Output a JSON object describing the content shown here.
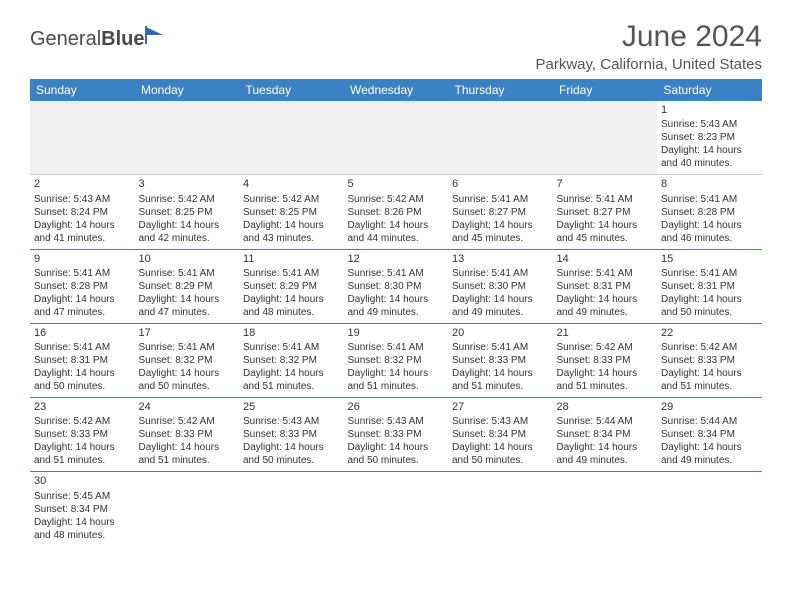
{
  "logo": {
    "text1": "General",
    "text2": "Blue",
    "icon_color": "#2b6cb0"
  },
  "title": "June 2024",
  "location": "Parkway, California, United States",
  "colors": {
    "header_bg": "#3b82c4",
    "header_fg": "#ffffff",
    "border": "#3b82c4",
    "empty_bg": "#f0f0f0",
    "text": "#333333"
  },
  "days_of_week": [
    "Sunday",
    "Monday",
    "Tuesday",
    "Wednesday",
    "Thursday",
    "Friday",
    "Saturday"
  ],
  "weeks": [
    [
      null,
      null,
      null,
      null,
      null,
      null,
      {
        "n": "1",
        "sr": "5:43 AM",
        "ss": "8:23 PM",
        "dl": "14 hours and 40 minutes."
      }
    ],
    [
      {
        "n": "2",
        "sr": "5:43 AM",
        "ss": "8:24 PM",
        "dl": "14 hours and 41 minutes."
      },
      {
        "n": "3",
        "sr": "5:42 AM",
        "ss": "8:25 PM",
        "dl": "14 hours and 42 minutes."
      },
      {
        "n": "4",
        "sr": "5:42 AM",
        "ss": "8:25 PM",
        "dl": "14 hours and 43 minutes."
      },
      {
        "n": "5",
        "sr": "5:42 AM",
        "ss": "8:26 PM",
        "dl": "14 hours and 44 minutes."
      },
      {
        "n": "6",
        "sr": "5:41 AM",
        "ss": "8:27 PM",
        "dl": "14 hours and 45 minutes."
      },
      {
        "n": "7",
        "sr": "5:41 AM",
        "ss": "8:27 PM",
        "dl": "14 hours and 45 minutes."
      },
      {
        "n": "8",
        "sr": "5:41 AM",
        "ss": "8:28 PM",
        "dl": "14 hours and 46 minutes."
      }
    ],
    [
      {
        "n": "9",
        "sr": "5:41 AM",
        "ss": "8:28 PM",
        "dl": "14 hours and 47 minutes."
      },
      {
        "n": "10",
        "sr": "5:41 AM",
        "ss": "8:29 PM",
        "dl": "14 hours and 47 minutes."
      },
      {
        "n": "11",
        "sr": "5:41 AM",
        "ss": "8:29 PM",
        "dl": "14 hours and 48 minutes."
      },
      {
        "n": "12",
        "sr": "5:41 AM",
        "ss": "8:30 PM",
        "dl": "14 hours and 49 minutes."
      },
      {
        "n": "13",
        "sr": "5:41 AM",
        "ss": "8:30 PM",
        "dl": "14 hours and 49 minutes."
      },
      {
        "n": "14",
        "sr": "5:41 AM",
        "ss": "8:31 PM",
        "dl": "14 hours and 49 minutes."
      },
      {
        "n": "15",
        "sr": "5:41 AM",
        "ss": "8:31 PM",
        "dl": "14 hours and 50 minutes."
      }
    ],
    [
      {
        "n": "16",
        "sr": "5:41 AM",
        "ss": "8:31 PM",
        "dl": "14 hours and 50 minutes."
      },
      {
        "n": "17",
        "sr": "5:41 AM",
        "ss": "8:32 PM",
        "dl": "14 hours and 50 minutes."
      },
      {
        "n": "18",
        "sr": "5:41 AM",
        "ss": "8:32 PM",
        "dl": "14 hours and 51 minutes."
      },
      {
        "n": "19",
        "sr": "5:41 AM",
        "ss": "8:32 PM",
        "dl": "14 hours and 51 minutes."
      },
      {
        "n": "20",
        "sr": "5:41 AM",
        "ss": "8:33 PM",
        "dl": "14 hours and 51 minutes."
      },
      {
        "n": "21",
        "sr": "5:42 AM",
        "ss": "8:33 PM",
        "dl": "14 hours and 51 minutes."
      },
      {
        "n": "22",
        "sr": "5:42 AM",
        "ss": "8:33 PM",
        "dl": "14 hours and 51 minutes."
      }
    ],
    [
      {
        "n": "23",
        "sr": "5:42 AM",
        "ss": "8:33 PM",
        "dl": "14 hours and 51 minutes."
      },
      {
        "n": "24",
        "sr": "5:42 AM",
        "ss": "8:33 PM",
        "dl": "14 hours and 51 minutes."
      },
      {
        "n": "25",
        "sr": "5:43 AM",
        "ss": "8:33 PM",
        "dl": "14 hours and 50 minutes."
      },
      {
        "n": "26",
        "sr": "5:43 AM",
        "ss": "8:33 PM",
        "dl": "14 hours and 50 minutes."
      },
      {
        "n": "27",
        "sr": "5:43 AM",
        "ss": "8:34 PM",
        "dl": "14 hours and 50 minutes."
      },
      {
        "n": "28",
        "sr": "5:44 AM",
        "ss": "8:34 PM",
        "dl": "14 hours and 49 minutes."
      },
      {
        "n": "29",
        "sr": "5:44 AM",
        "ss": "8:34 PM",
        "dl": "14 hours and 49 minutes."
      }
    ],
    [
      {
        "n": "30",
        "sr": "5:45 AM",
        "ss": "8:34 PM",
        "dl": "14 hours and 48 minutes."
      },
      null,
      null,
      null,
      null,
      null,
      null
    ]
  ],
  "labels": {
    "sunrise": "Sunrise:",
    "sunset": "Sunset:",
    "daylight": "Daylight:"
  }
}
